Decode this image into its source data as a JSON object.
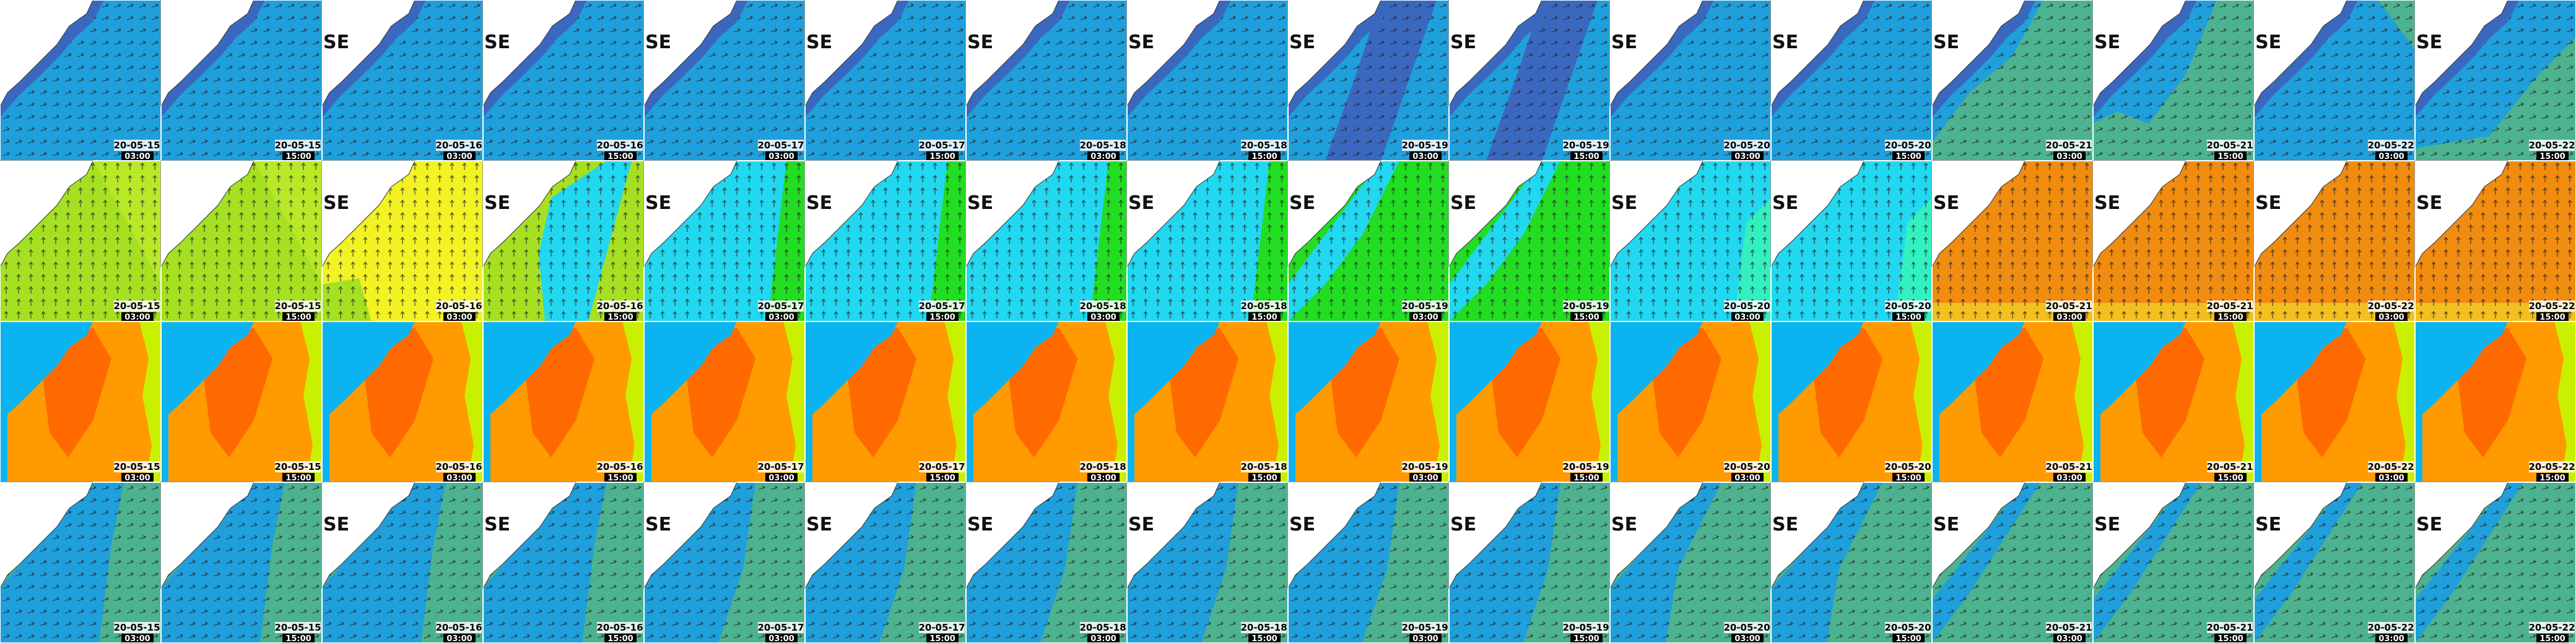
{
  "columns": [
    {
      "date": "20-05-15",
      "time": "03:00"
    },
    {
      "date": "20-05-15",
      "time": "15:00"
    },
    {
      "date": "20-05-16",
      "time": "03:00"
    },
    {
      "date": "20-05-16",
      "time": "15:00"
    },
    {
      "date": "20-05-17",
      "time": "03:00"
    },
    {
      "date": "20-05-17",
      "time": "15:00"
    },
    {
      "date": "20-05-18",
      "time": "03:00"
    },
    {
      "date": "20-05-18",
      "time": "15:00"
    },
    {
      "date": "20-05-19",
      "time": "03:00"
    },
    {
      "date": "20-05-19",
      "time": "15:00"
    },
    {
      "date": "20-05-20",
      "time": "03:00"
    },
    {
      "date": "20-05-20",
      "time": "15:00"
    },
    {
      "date": "20-05-21",
      "time": "03:00"
    },
    {
      "date": "20-05-21",
      "time": "15:00"
    },
    {
      "date": "20-05-22",
      "time": "03:00"
    },
    {
      "date": "20-05-22",
      "time": "15:00"
    }
  ],
  "side_label": "SE"
}
